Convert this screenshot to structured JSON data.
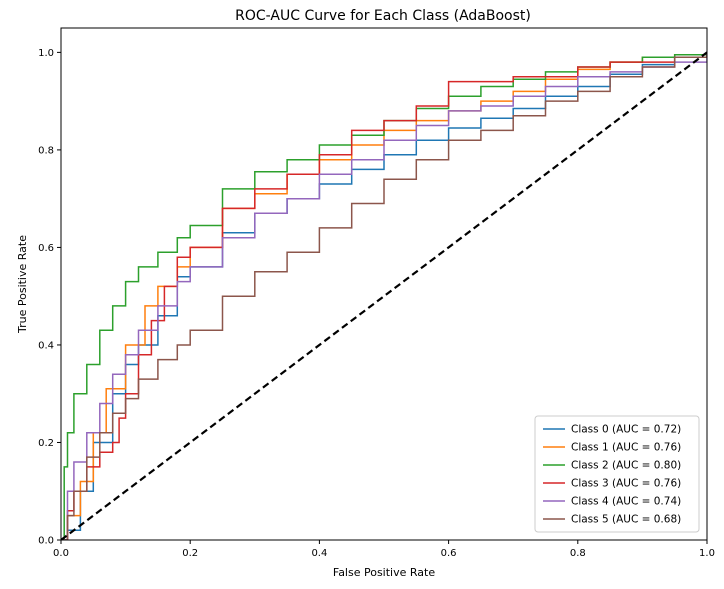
{
  "chart_data": {
    "type": "line",
    "title": "ROC-AUC Curve for Each Class (AdaBoost)",
    "xlabel": "False Positive Rate",
    "ylabel": "True Positive Rate",
    "xlim": [
      0.0,
      1.0
    ],
    "ylim": [
      0.0,
      1.05
    ],
    "xticks": [
      "0.0",
      "0.2",
      "0.4",
      "0.6",
      "0.8",
      "1.0"
    ],
    "yticks": [
      "0.0",
      "0.2",
      "0.4",
      "0.6",
      "0.8",
      "1.0"
    ],
    "grid": false,
    "legend_position": "lower-right",
    "series": [
      {
        "name": "Class 0 (AUC = 0.72)",
        "color": "#1f77b4",
        "x": [
          0,
          0.01,
          0.03,
          0.05,
          0.08,
          0.1,
          0.12,
          0.15,
          0.18,
          0.2,
          0.25,
          0.3,
          0.35,
          0.4,
          0.45,
          0.5,
          0.55,
          0.6,
          0.65,
          0.7,
          0.75,
          0.8,
          0.85,
          0.9,
          0.95,
          1.0
        ],
        "y": [
          0,
          0.02,
          0.1,
          0.2,
          0.3,
          0.36,
          0.4,
          0.46,
          0.54,
          0.56,
          0.63,
          0.67,
          0.7,
          0.73,
          0.76,
          0.79,
          0.82,
          0.845,
          0.865,
          0.885,
          0.91,
          0.93,
          0.955,
          0.975,
          0.99,
          1.0
        ]
      },
      {
        "name": "Class 1 (AUC = 0.76)",
        "color": "#ff7f0e",
        "x": [
          0,
          0.01,
          0.03,
          0.05,
          0.07,
          0.1,
          0.13,
          0.15,
          0.18,
          0.2,
          0.25,
          0.3,
          0.35,
          0.4,
          0.45,
          0.5,
          0.55,
          0.6,
          0.65,
          0.7,
          0.75,
          0.8,
          0.85,
          0.9,
          0.95,
          1.0
        ],
        "y": [
          0,
          0.05,
          0.12,
          0.22,
          0.31,
          0.4,
          0.48,
          0.52,
          0.56,
          0.6,
          0.68,
          0.71,
          0.75,
          0.78,
          0.81,
          0.84,
          0.86,
          0.88,
          0.9,
          0.92,
          0.945,
          0.965,
          0.98,
          0.99,
          0.995,
          1.0
        ]
      },
      {
        "name": "Class 2 (AUC = 0.80)",
        "color": "#2ca02c",
        "x": [
          0,
          0.005,
          0.01,
          0.02,
          0.04,
          0.06,
          0.08,
          0.1,
          0.12,
          0.15,
          0.18,
          0.2,
          0.25,
          0.3,
          0.35,
          0.4,
          0.45,
          0.5,
          0.55,
          0.6,
          0.65,
          0.7,
          0.75,
          0.8,
          0.85,
          0.9,
          0.95,
          1.0
        ],
        "y": [
          0,
          0.15,
          0.22,
          0.3,
          0.36,
          0.43,
          0.48,
          0.53,
          0.56,
          0.59,
          0.62,
          0.645,
          0.72,
          0.755,
          0.78,
          0.81,
          0.83,
          0.86,
          0.885,
          0.91,
          0.93,
          0.945,
          0.96,
          0.97,
          0.98,
          0.99,
          0.995,
          1.0
        ]
      },
      {
        "name": "Class 3 (AUC = 0.76)",
        "color": "#d62728",
        "x": [
          0,
          0.01,
          0.02,
          0.04,
          0.06,
          0.08,
          0.09,
          0.1,
          0.12,
          0.14,
          0.16,
          0.18,
          0.2,
          0.25,
          0.3,
          0.35,
          0.4,
          0.45,
          0.5,
          0.55,
          0.6,
          0.65,
          0.7,
          0.75,
          0.8,
          0.85,
          0.9,
          0.95,
          1.0
        ],
        "y": [
          0,
          0.06,
          0.1,
          0.15,
          0.18,
          0.2,
          0.25,
          0.3,
          0.38,
          0.45,
          0.52,
          0.58,
          0.6,
          0.68,
          0.72,
          0.75,
          0.79,
          0.84,
          0.86,
          0.89,
          0.94,
          0.94,
          0.95,
          0.95,
          0.97,
          0.98,
          0.98,
          0.99,
          1.0
        ]
      },
      {
        "name": "Class 4 (AUC = 0.74)",
        "color": "#9467bd",
        "x": [
          0,
          0.01,
          0.02,
          0.04,
          0.06,
          0.08,
          0.1,
          0.12,
          0.15,
          0.18,
          0.2,
          0.25,
          0.3,
          0.35,
          0.4,
          0.45,
          0.5,
          0.55,
          0.6,
          0.65,
          0.7,
          0.75,
          0.8,
          0.85,
          0.9,
          0.95,
          1.0
        ],
        "y": [
          0,
          0.1,
          0.16,
          0.22,
          0.28,
          0.34,
          0.38,
          0.43,
          0.48,
          0.53,
          0.56,
          0.62,
          0.67,
          0.7,
          0.75,
          0.78,
          0.82,
          0.85,
          0.88,
          0.89,
          0.91,
          0.93,
          0.95,
          0.96,
          0.97,
          0.98,
          1.0
        ]
      },
      {
        "name": "Class 5 (AUC = 0.68)",
        "color": "#8c564b",
        "x": [
          0,
          0.01,
          0.02,
          0.04,
          0.06,
          0.08,
          0.1,
          0.12,
          0.15,
          0.18,
          0.2,
          0.25,
          0.3,
          0.35,
          0.4,
          0.45,
          0.5,
          0.55,
          0.6,
          0.65,
          0.7,
          0.75,
          0.8,
          0.85,
          0.9,
          0.95,
          1.0
        ],
        "y": [
          0,
          0.05,
          0.1,
          0.17,
          0.22,
          0.26,
          0.29,
          0.33,
          0.37,
          0.4,
          0.43,
          0.5,
          0.55,
          0.59,
          0.64,
          0.69,
          0.74,
          0.78,
          0.82,
          0.84,
          0.87,
          0.9,
          0.92,
          0.95,
          0.97,
          0.99,
          1.0
        ]
      }
    ],
    "reference_line": {
      "style": "dashed",
      "color": "#000000",
      "x": [
        0,
        1
      ],
      "y": [
        0,
        1
      ]
    }
  }
}
